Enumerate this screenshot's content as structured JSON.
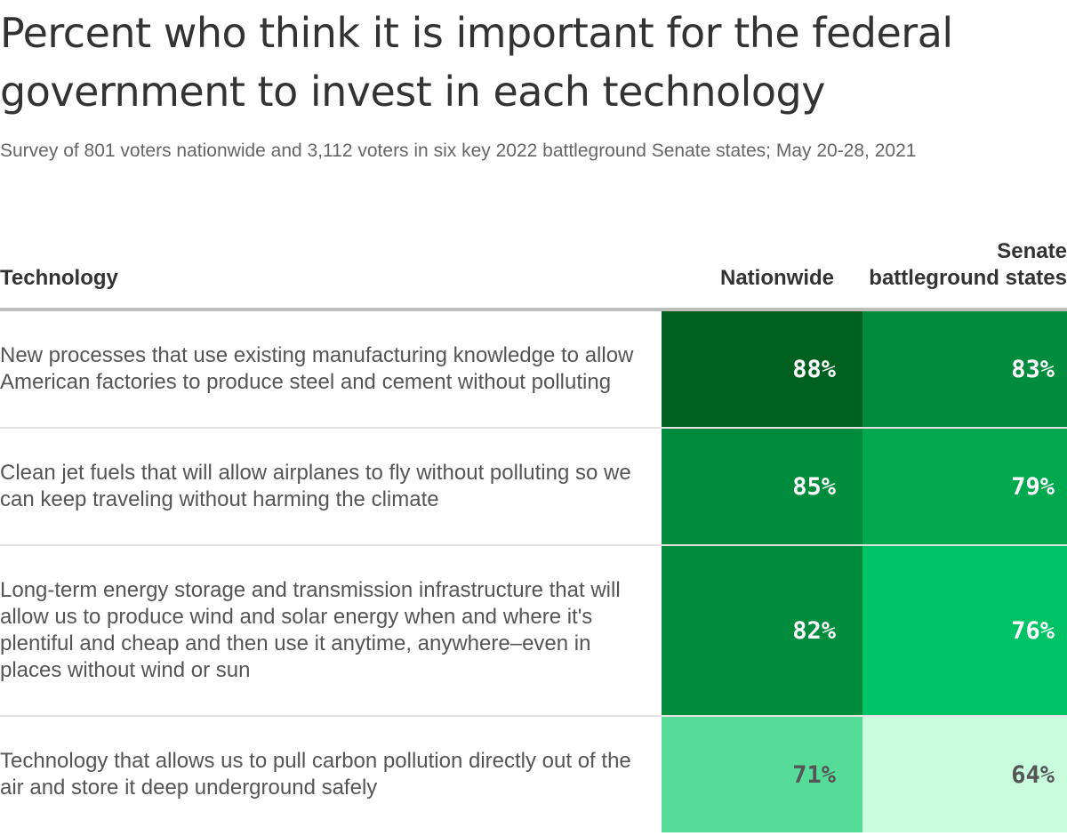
{
  "title": "Percent who think it is important for the federal government to invest in each technology",
  "subtitle": "Survey of 801 voters nationwide and 3,112 voters in six key 2022 battleground Senate states; May 20-28, 2021",
  "colors": {
    "scale": [
      "#c8fcdc",
      "#55dc99",
      "#00c366",
      "#00a84e",
      "#008c3c",
      "#00601f"
    ],
    "text_light": "#ffffff",
    "text_dark": "#555555"
  },
  "chart_data": {
    "type": "table",
    "columns": [
      "Technology",
      "Nationwide",
      "Senate battleground states"
    ],
    "rows": [
      {
        "technology": "New processes that use existing manufacturing knowledge to allow American factories to produce steel and cement without polluting",
        "nationwide": 88,
        "nationwide_label": "88%",
        "senate": 83,
        "senate_label": "83%"
      },
      {
        "technology": "Clean jet fuels that will allow airplanes to fly without polluting so we can keep traveling without harming the climate",
        "nationwide": 85,
        "nationwide_label": "85%",
        "senate": 79,
        "senate_label": "79%"
      },
      {
        "technology": "Long-term energy storage and transmission infrastructure that will allow us to produce wind and solar energy when and where it's plentiful and cheap and then use it anytime, anywhere–even in places without wind or sun",
        "nationwide": 82,
        "nationwide_label": "82%",
        "senate": 76,
        "senate_label": "76%"
      },
      {
        "technology": "Technology that allows us to pull carbon pollution directly out of the air and store it deep underground safely",
        "nationwide": 71,
        "nationwide_label": "71%",
        "senate": 64,
        "senate_label": "64%"
      }
    ]
  }
}
